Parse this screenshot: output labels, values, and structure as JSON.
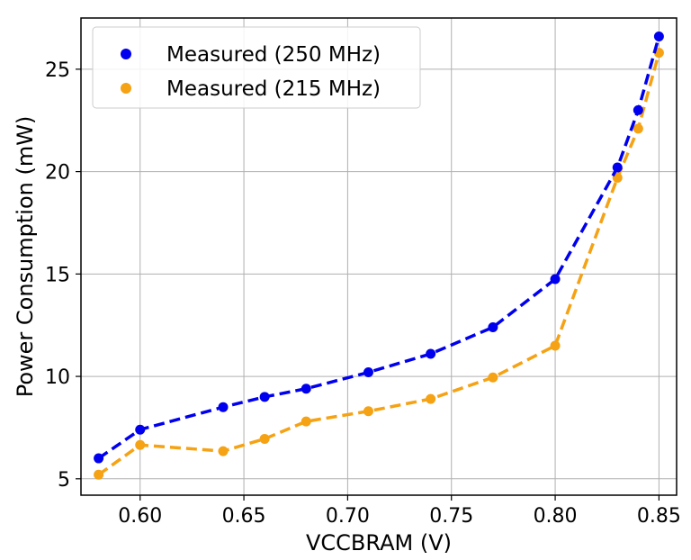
{
  "chart_data": {
    "type": "line",
    "title": "",
    "xlabel": "VCCBRAM (V)",
    "ylabel": "Power Consumption (mW)",
    "xlim": [
      0.5715,
      0.8585
    ],
    "ylim": [
      4.2,
      27.5
    ],
    "grid": true,
    "legend_position": "top-left",
    "x_ticks": [
      0.6,
      0.65,
      0.7,
      0.75,
      0.8,
      0.85
    ],
    "x_tick_labels": [
      "0.60",
      "0.65",
      "0.70",
      "0.75",
      "0.80",
      "0.85"
    ],
    "y_ticks": [
      5,
      10,
      15,
      20,
      25
    ],
    "y_tick_labels": [
      "5",
      "10",
      "15",
      "20",
      "25"
    ],
    "series": [
      {
        "name": "Measured (250 MHz)",
        "color": "#0000ee",
        "x": [
          0.58,
          0.6,
          0.64,
          0.66,
          0.68,
          0.71,
          0.74,
          0.77,
          0.8,
          0.83,
          0.84,
          0.85
        ],
        "y": [
          6.0,
          7.4,
          8.5,
          9.0,
          9.4,
          10.2,
          11.1,
          12.4,
          14.75,
          20.2,
          23.0,
          26.6
        ]
      },
      {
        "name": "Measured (215 MHz)",
        "color": "#f5a214",
        "x": [
          0.58,
          0.6,
          0.64,
          0.66,
          0.68,
          0.71,
          0.74,
          0.77,
          0.8,
          0.83,
          0.84,
          0.85
        ],
        "y": [
          5.2,
          6.65,
          6.35,
          6.95,
          7.8,
          8.3,
          8.9,
          9.95,
          11.5,
          19.7,
          22.1,
          25.8
        ]
      }
    ]
  }
}
